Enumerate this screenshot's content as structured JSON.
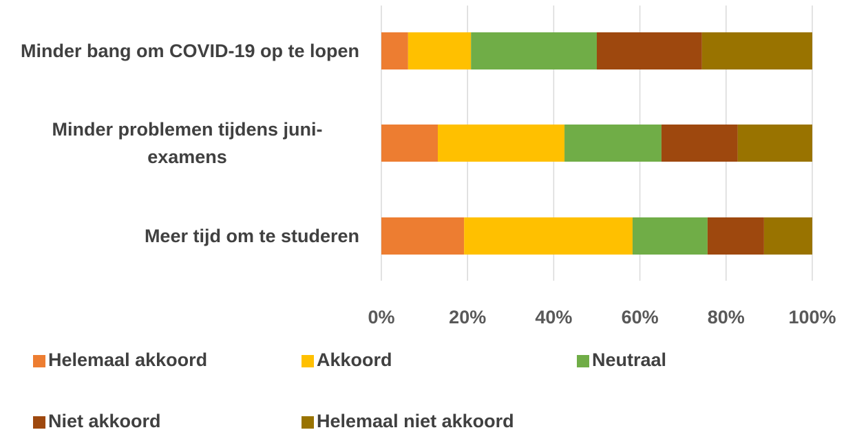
{
  "chart_data": {
    "type": "bar",
    "orientation": "horizontal",
    "stacked": "percent",
    "categories": [
      "Minder bang om COVID-19 op te lopen",
      "Minder problemen tijdens juni-examens",
      "Meer tijd om te studeren"
    ],
    "series": [
      {
        "name": "Helemaal akkoord",
        "color": "#ED7D31",
        "values": [
          6.2,
          13.1,
          19.2
        ]
      },
      {
        "name": "Akkoord",
        "color": "#FFC000",
        "values": [
          14.6,
          29.4,
          39.1
        ]
      },
      {
        "name": "Neutraal",
        "color": "#70AD47",
        "values": [
          29.2,
          22.5,
          17.4
        ]
      },
      {
        "name": "Niet akkoord",
        "color": "#9E480E",
        "values": [
          24.4,
          17.7,
          13.1
        ]
      },
      {
        "name": "Helemaal niet akkoord",
        "color": "#997300",
        "values": [
          25.6,
          17.3,
          11.2
        ]
      }
    ],
    "xlim": [
      0,
      100
    ],
    "xticks": [
      {
        "value": 0,
        "label": "0%"
      },
      {
        "value": 20,
        "label": "20%"
      },
      {
        "value": 40,
        "label": "40%"
      },
      {
        "value": 60,
        "label": "60%"
      },
      {
        "value": 80,
        "label": "80%"
      },
      {
        "value": 100,
        "label": "100%"
      }
    ],
    "grid": true,
    "legend": "bottom"
  }
}
